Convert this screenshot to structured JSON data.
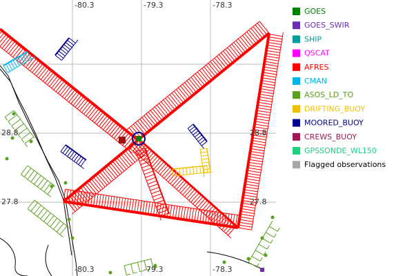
{
  "map": {
    "lon_labels": [
      "-80.3",
      "-79.3",
      "-78.3"
    ],
    "lat_labels": [
      "28.8",
      "27.8"
    ],
    "legend": [
      {
        "name": "GOES",
        "color": "#008000"
      },
      {
        "name": "GOES_SWIR",
        "color": "#6a2fb0"
      },
      {
        "name": "SHIP",
        "color": "#009c9c"
      },
      {
        "name": "QSCAT",
        "color": "#ff00ff"
      },
      {
        "name": "AFRES",
        "color": "#ff0000"
      },
      {
        "name": "CMAN",
        "color": "#00b8e8"
      },
      {
        "name": "ASOS_LD_TO",
        "color": "#5aa020"
      },
      {
        "name": "DRIFTING_BUOY",
        "color": "#f0c000"
      },
      {
        "name": "MOORED_BUOY",
        "color": "#00008b"
      },
      {
        "name": "CREWS_BUOY",
        "color": "#a0185a"
      },
      {
        "name": "GPSSONDE_WL150",
        "color": "#20d080"
      },
      {
        "name": "Flagged observations",
        "color": "#a8a8a8"
      }
    ]
  }
}
